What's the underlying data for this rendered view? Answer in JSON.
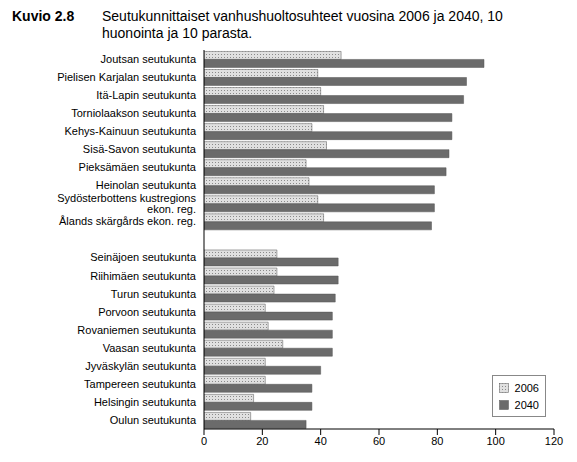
{
  "chart_data": {
    "type": "bar",
    "figure_number": "Kuvio 2.8",
    "title": "Seutukunnittaiset vanhushuoltosuhteet vuosina 2006 ja 2040, 10 huonointa ja 10 parasta.",
    "orientation": "horizontal",
    "categories": [
      "Joutsan seutukunta",
      "Pielisen Karjalan seutukunta",
      "Itä-Lapin seutukunta",
      "Torniolaakson seutukunta",
      "Kehys-Kainuun seutukunta",
      "Sisä-Savon seutukunta",
      "Pieksämäen seutukunta",
      "Heinolan seutukunta",
      "Sydösterbottens kustregions ekon. reg.",
      "Ålands skärgårds ekon. reg.",
      null,
      "Seinäjoen seutukunta",
      "Riihimäen seutukunta",
      "Turun seutukunta",
      "Porvoon seutukunta",
      "Rovaniemen seutukunta",
      "Vaasan seutukunta",
      "Jyväskylän seutukunta",
      "Tampereen seutukunta",
      "Helsingin seutukunta",
      "Oulun seutukunta"
    ],
    "series": [
      {
        "name": "2006",
        "color": "#e0e0e0",
        "values": [
          47,
          39,
          40,
          41,
          37,
          42,
          35,
          36,
          39,
          41,
          null,
          25,
          25,
          24,
          21,
          22,
          27,
          21,
          21,
          17,
          16
        ]
      },
      {
        "name": "2040",
        "color": "#6b6b6b",
        "values": [
          96,
          90,
          89,
          85,
          85,
          84,
          83,
          79,
          79,
          78,
          null,
          46,
          46,
          45,
          44,
          44,
          44,
          40,
          37,
          37,
          35
        ]
      }
    ],
    "xlim": [
      0,
      120
    ],
    "xticks": [
      0,
      20,
      40,
      60,
      80,
      100,
      120
    ],
    "grid": false,
    "legend": "lower right"
  }
}
